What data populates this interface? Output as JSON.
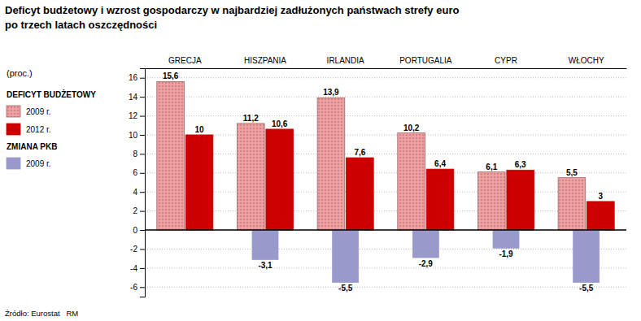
{
  "chart_data": {
    "type": "bar",
    "title": "Deficyt budżetowy i wzrost gospodarczy w najbardziej zadłużonych państwach strefy euro",
    "subtitle": "po trzech latach oszczędności",
    "ylabel": "(proc.)",
    "annotations": [
      "Źródło: Eurostat   RM"
    ],
    "categories": [
      "GRECJA",
      "HISZPANIA",
      "IRLANDIA",
      "PORTUGALIA",
      "CYPR",
      "WŁOCHY"
    ],
    "series": [
      {
        "name": "2009 r.",
        "group": "DEFICYT BUDŻETOWY",
        "color": "#f0a0a0",
        "values": [
          15.6,
          11.2,
          13.9,
          10.2,
          6.1,
          5.5
        ],
        "value_labels": [
          "15,6",
          "11,2",
          "13,9",
          "10,2",
          "6,1",
          "5,5"
        ]
      },
      {
        "name": "2012 r.",
        "group": "DEFICYT BUDŻETOWY",
        "color": "#cc0000",
        "values": [
          10.0,
          10.6,
          7.6,
          6.4,
          6.3,
          3.0
        ],
        "value_labels": [
          "10",
          "10,6",
          "7,6",
          "6,4",
          "6,3",
          "3"
        ]
      },
      {
        "name": "2009 r.",
        "group": "ZMIANA PKB",
        "color": "#9999cc",
        "values": [
          0,
          -3.1,
          -5.5,
          -2.9,
          -1.9,
          -5.5
        ],
        "value_labels": [
          null,
          "-3,1",
          "-5,5",
          "-2,9",
          "-1,9",
          "-5,5"
        ]
      }
    ],
    "ylim": [
      -7.0,
      17.0
    ],
    "yticks": [
      -6,
      -4,
      -2,
      0,
      2,
      4,
      6,
      8,
      10,
      12,
      14,
      16
    ],
    "grid": true,
    "data_labels": true,
    "legend": "left"
  }
}
